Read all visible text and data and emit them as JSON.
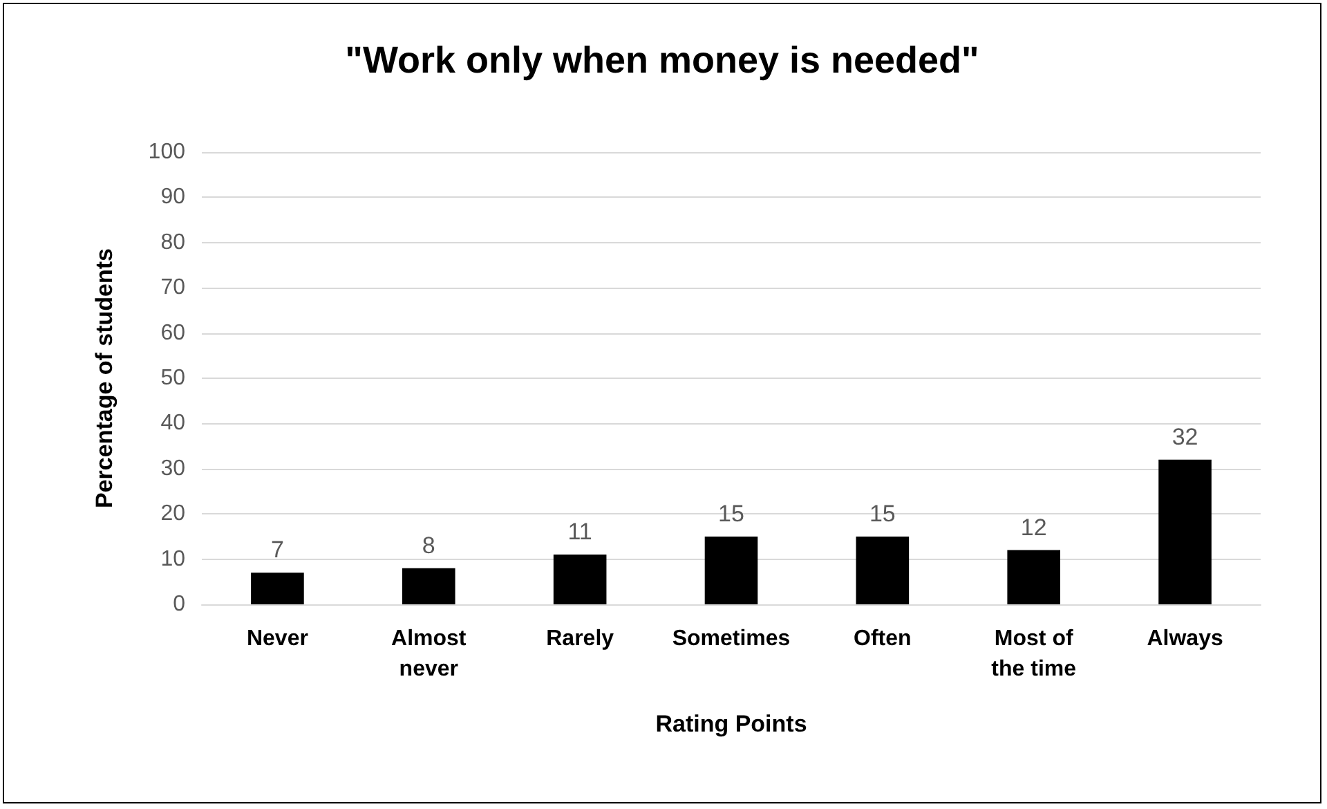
{
  "chart_data": {
    "type": "bar",
    "title": "\"Work only when money is needed\"",
    "xlabel": "Rating Points",
    "ylabel": "Percentage of students",
    "categories": [
      "Never",
      "Almost never",
      "Rarely",
      "Sometimes",
      "Often",
      "Most of the time",
      "Always"
    ],
    "values": [
      7,
      8,
      11,
      15,
      15,
      12,
      32
    ],
    "color": "#000000",
    "ylim": [
      0,
      100
    ],
    "yticks": [
      0,
      10,
      20,
      30,
      40,
      50,
      60,
      70,
      80,
      90,
      100
    ],
    "grid": "y",
    "data_labels": true
  }
}
